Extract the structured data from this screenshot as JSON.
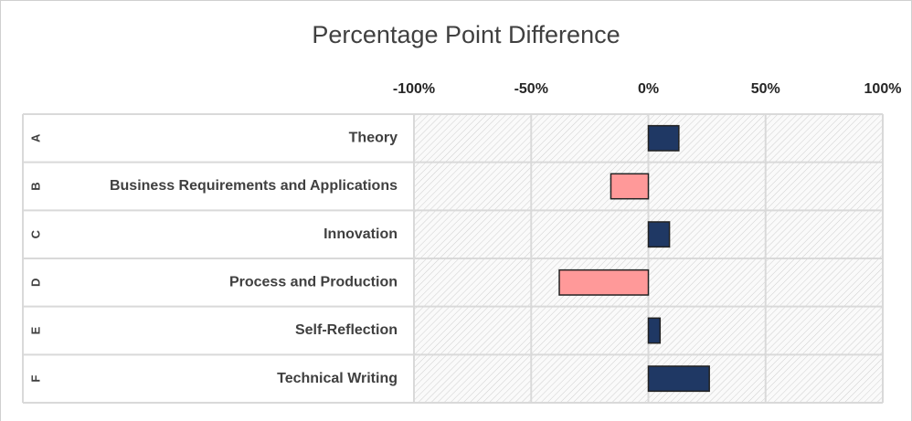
{
  "chart_data": {
    "type": "bar",
    "orientation": "horizontal",
    "title": "Percentage Point Difference",
    "groups": [
      "A",
      "B",
      "C",
      "D",
      "E",
      "F"
    ],
    "categories": [
      "Theory",
      "Business Requirements and Applications",
      "Innovation",
      "Process and Production",
      "Self-Reflection",
      "Technical Writing"
    ],
    "values": [
      13,
      -16,
      9,
      -38,
      5,
      26
    ],
    "positive_color": "#1f3864",
    "negative_color": "#ff9999",
    "xlim": [
      -100,
      100
    ],
    "xticks": [
      {
        "value": -100,
        "label": "-100%"
      },
      {
        "value": -50,
        "label": "-50%"
      },
      {
        "value": 0,
        "label": "0%"
      },
      {
        "value": 50,
        "label": "50%"
      },
      {
        "value": 100,
        "label": "100%"
      }
    ],
    "grid": true
  }
}
